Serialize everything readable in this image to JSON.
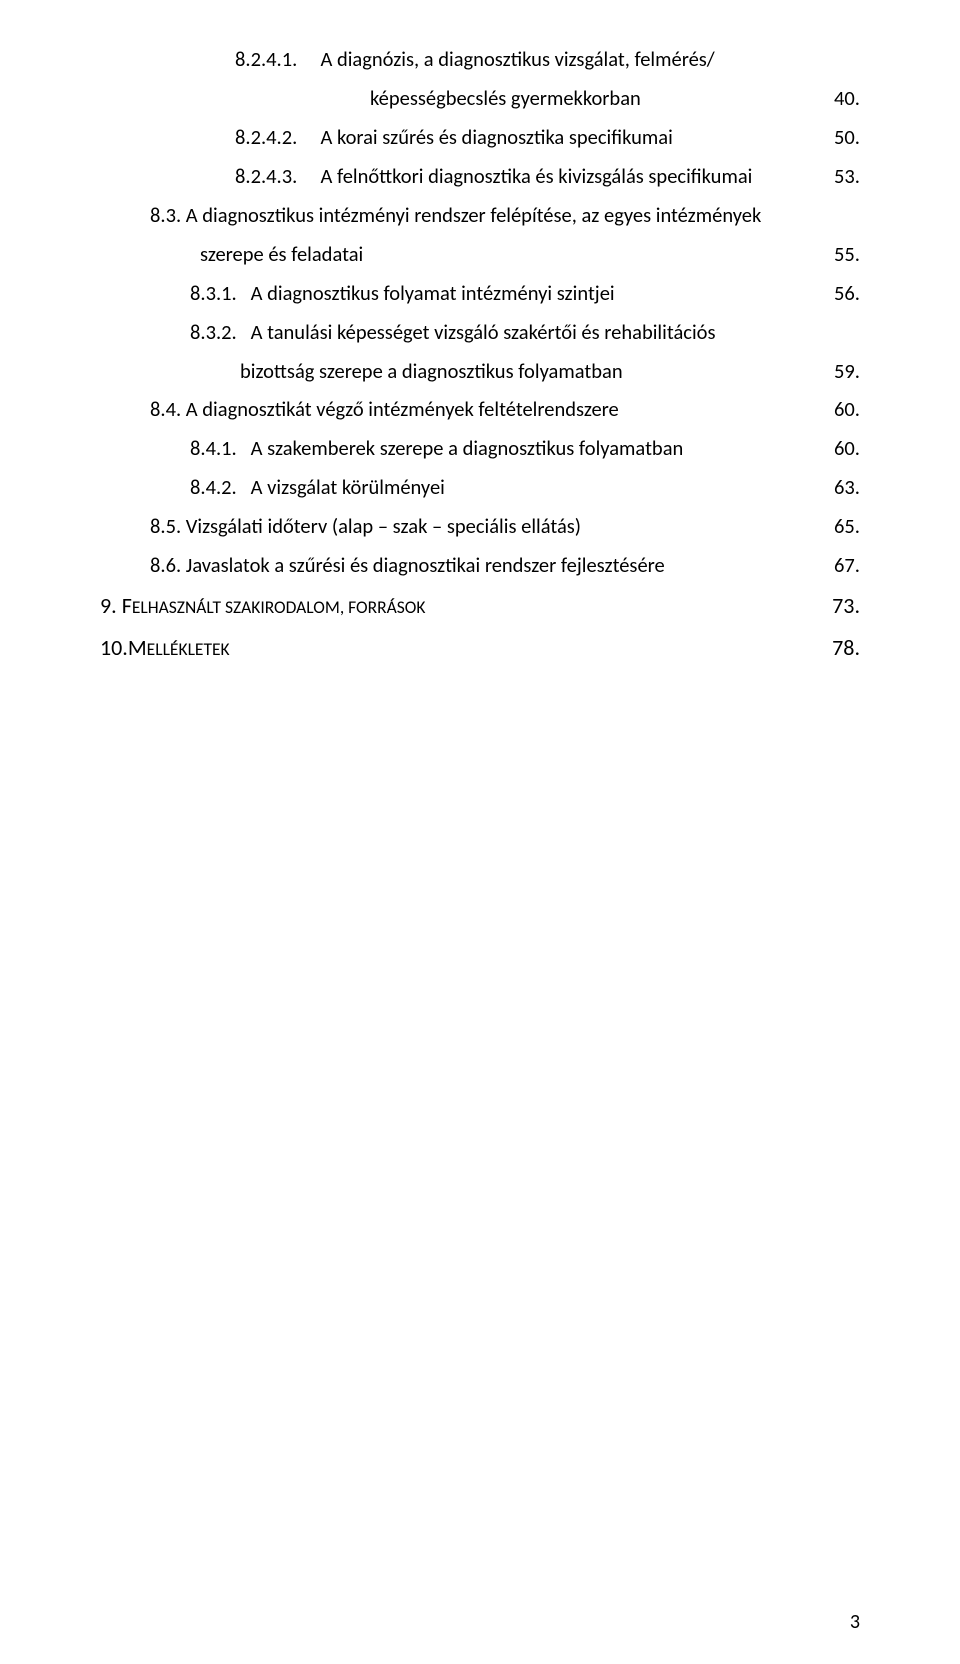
{
  "toc": [
    {
      "label": "8.2.4.1.",
      "text": "A diagnózis, a diagnosztikus vizsgálat, felmérés/",
      "page": "",
      "indent": 3,
      "cont": false
    },
    {
      "label": "",
      "text": "képességbecslés  gyermekkorban",
      "page": "40.",
      "indent": 3,
      "cont": true
    },
    {
      "label": "8.2.4.2.",
      "text": "A korai szűrés és diagnosztika specifikumai",
      "page": "50.",
      "indent": 3,
      "cont": false
    },
    {
      "label": "8.2.4.3.",
      "text": "A felnőttkori diagnosztika és kivizsgálás specifikumai",
      "page": "53.",
      "indent": 3,
      "cont": false
    },
    {
      "label": "8.3.",
      "text": "A diagnosztikus intézményi rendszer felépítése, az  egyes intézmények",
      "page": "",
      "indent": 1,
      "cont": false
    },
    {
      "label": "",
      "text": "szerepe és feladatai",
      "page": "55.",
      "indent": 1,
      "cont": true
    },
    {
      "label": "8.3.1.",
      "text": "A diagnosztikus folyamat intézményi szintjei",
      "page": "56.",
      "indent": 2,
      "cont": false
    },
    {
      "label": "8.3.2.",
      "text": "A tanulási képességet vizsgáló szakértői és rehabilitációs",
      "page": "",
      "indent": 2,
      "cont": false
    },
    {
      "label": "",
      "text": "bizottság szerepe a diagnosztikus folyamatban",
      "page": "59.",
      "indent": 2,
      "cont": true
    },
    {
      "label": "8.4.",
      "text": "A diagnosztikát végző intézmények feltételrendszere",
      "page": "60.",
      "indent": 1,
      "cont": false
    },
    {
      "label": "8.4.1.",
      "text": "A szakemberek szerepe a diagnosztikus folyamatban",
      "page": "60.",
      "indent": 2,
      "cont": false
    },
    {
      "label": "8.4.2.",
      "text": "A vizsgálat körülményei",
      "page": "63.",
      "indent": 2,
      "cont": false
    },
    {
      "label": "8.5.",
      "text": "Vizsgálati időterv  (alap – szak – speciális ellátás)",
      "page": "65.",
      "indent": 1,
      "cont": false
    },
    {
      "label": "8.6.",
      "text": "Javaslatok a szűrési és diagnosztikai rendszer fejlesztésére",
      "page": "67.",
      "indent": 1,
      "cont": false
    }
  ],
  "majors": [
    {
      "label": "9.",
      "text_pre": "F",
      "text_sc": "ELHASZNÁLT SZAKIRODALOM",
      "text_mid": ", ",
      "text_sc2": "FORRÁSOK",
      "page": "73."
    },
    {
      "label": "10.",
      "text_pre": "M",
      "text_sc": "ELLÉKLETEK",
      "text_mid": "",
      "text_sc2": "",
      "page": "78."
    }
  ],
  "pageNumber": "3",
  "style": {
    "textColor": "#000000",
    "backgroundColor": "#ffffff",
    "fontSizeBody": 20.5,
    "fontSizeMajor": 22,
    "fontSizePageNum": 20
  }
}
